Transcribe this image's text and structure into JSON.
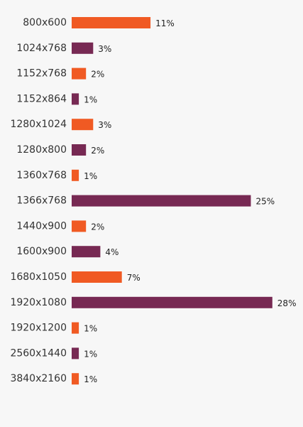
{
  "chart_data": {
    "type": "bar",
    "orientation": "horizontal",
    "categories": [
      "800x600",
      "1024x768",
      "1152x768",
      "1152x864",
      "1280x1024",
      "1280x800",
      "1360x768",
      "1366x768",
      "1440x900",
      "1600x900",
      "1680x1050",
      "1920x1080",
      "1920x1200",
      "2560x1440",
      "3840x2160"
    ],
    "values": [
      11,
      3,
      2,
      1,
      3,
      2,
      1,
      25,
      2,
      4,
      7,
      28,
      1,
      1,
      1
    ],
    "value_labels": [
      "11%",
      "3%",
      "2%",
      "1%",
      "3%",
      "2%",
      "1%",
      "25%",
      "2%",
      "4%",
      "7%",
      "28%",
      "1%",
      "1%",
      "1%"
    ],
    "colors": [
      "#f05a23",
      "#772953",
      "#f05a23",
      "#772953",
      "#f05a23",
      "#772953",
      "#f05a23",
      "#772953",
      "#f05a23",
      "#772953",
      "#f05a23",
      "#772953",
      "#f05a23",
      "#772953",
      "#f05a23"
    ],
    "unit": "%",
    "title": "",
    "xlabel": "",
    "ylabel": "",
    "grid": false,
    "legend": "none"
  }
}
